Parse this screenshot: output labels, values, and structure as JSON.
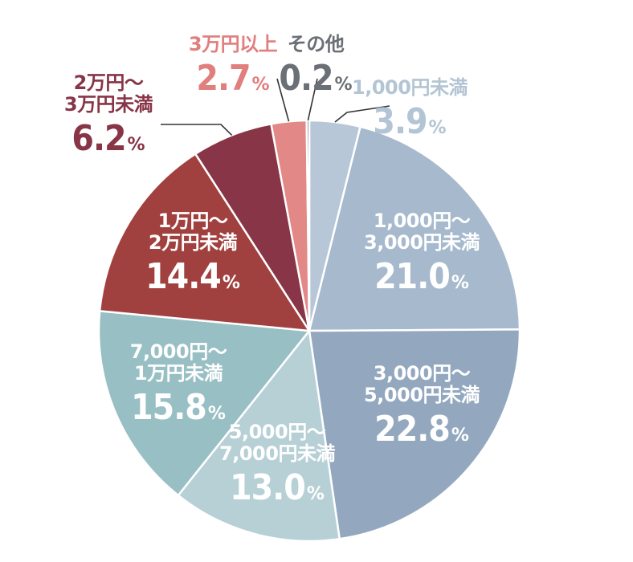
{
  "chart_data": {
    "type": "pie",
    "start_angle_deg": 0,
    "direction": "clockwise",
    "slices": [
      {
        "name_lines": [
          "1,000円未満"
        ],
        "value": 3.9,
        "value_text": "3.9",
        "unit": "%",
        "color": "#b7c7d7",
        "label_color": "#b3c4d4"
      },
      {
        "name_lines": [
          "1,000円～",
          "3,000円未満"
        ],
        "value": 21.0,
        "value_text": "21.0",
        "unit": "%",
        "color": "#a6b9cd",
        "label_color": "#ffffff"
      },
      {
        "name_lines": [
          "3,000円～",
          "5,000円未満"
        ],
        "value": 22.8,
        "value_text": "22.8",
        "unit": "%",
        "color": "#93a8bf",
        "label_color": "#ffffff"
      },
      {
        "name_lines": [
          "5,000円～",
          "7,000円未満"
        ],
        "value": 13.0,
        "value_text": "13.0",
        "unit": "%",
        "color": "#b6d0d6",
        "label_color": "#ffffff"
      },
      {
        "name_lines": [
          "7,000円～",
          "1万円未満"
        ],
        "value": 15.8,
        "value_text": "15.8",
        "unit": "%",
        "color": "#98bfc4",
        "label_color": "#ffffff"
      },
      {
        "name_lines": [
          "1万円～",
          "2万円未満"
        ],
        "value": 14.4,
        "value_text": "14.4",
        "unit": "%",
        "color": "#a1413f",
        "label_color": "#ffffff"
      },
      {
        "name_lines": [
          "2万円～",
          "3万円未満"
        ],
        "value": 6.2,
        "value_text": "6.2",
        "unit": "%",
        "color": "#873547",
        "label_color": "#873547"
      },
      {
        "name_lines": [
          "3万円以上"
        ],
        "value": 2.7,
        "value_text": "2.7",
        "unit": "%",
        "color": "#e28886",
        "label_color": "#e07f7d"
      },
      {
        "name_lines": [
          "その他"
        ],
        "value": 0.2,
        "value_text": "0.2",
        "unit": "%",
        "color": "#6f747c",
        "label_color": "#6b6f76"
      }
    ]
  }
}
